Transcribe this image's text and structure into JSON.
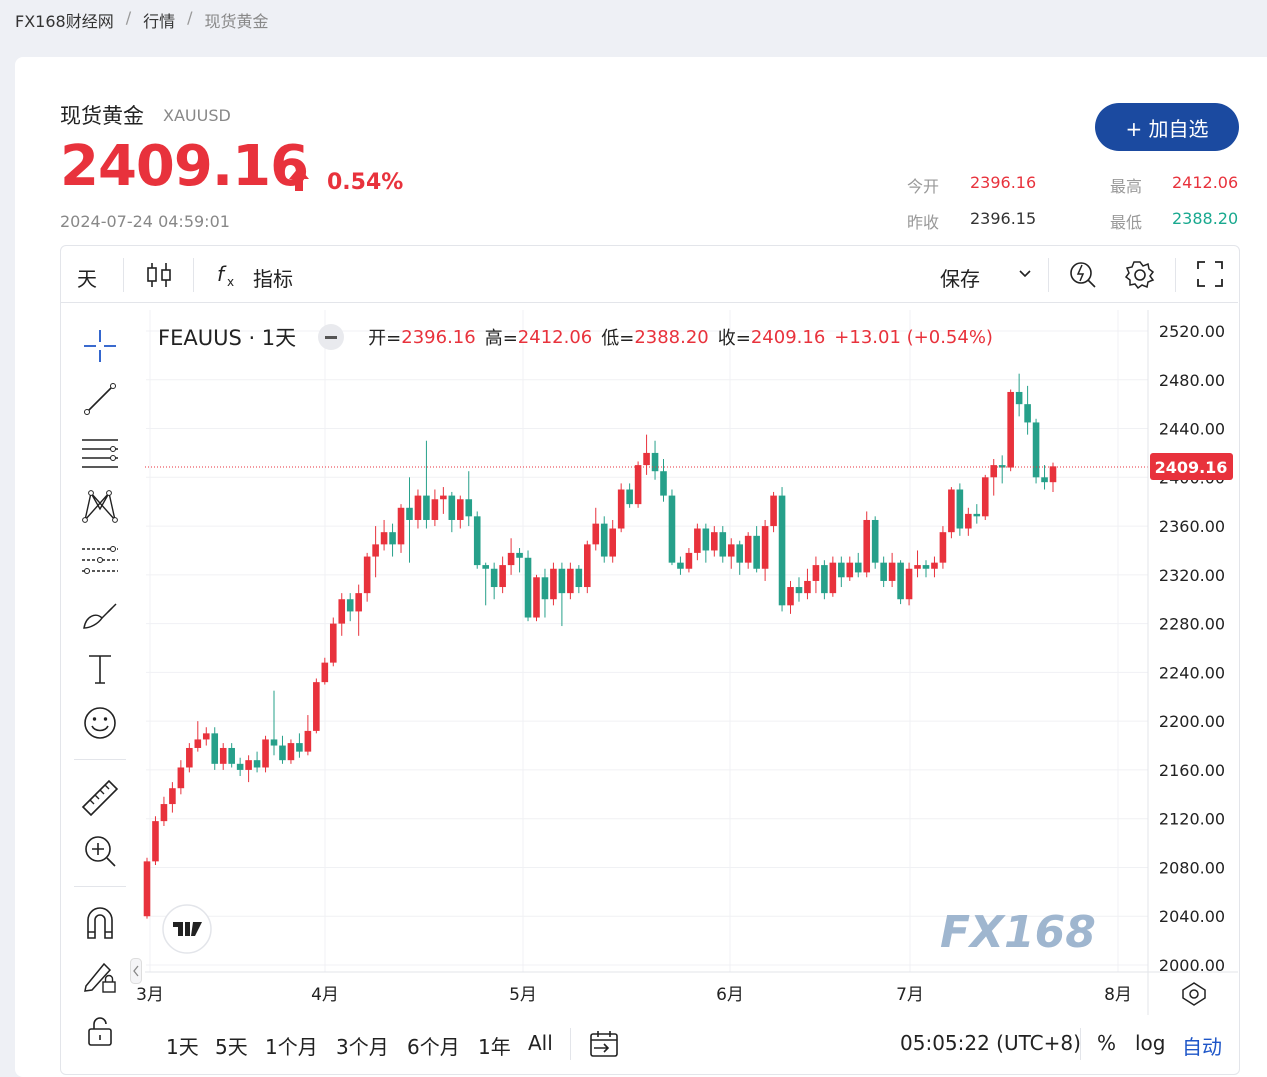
{
  "breadcrumb": {
    "site": "FX168财经网",
    "section": "行情",
    "current": "现货黄金"
  },
  "quote": {
    "name": "现货黄金",
    "symbol": "XAUUSD",
    "price": "2409.16",
    "change_pct": "0.54%",
    "timestamp": "2024-07-24 04:59:01",
    "add_label": "+ 加自选"
  },
  "stats": {
    "open_label": "今开",
    "open": "2396.16",
    "high_label": "最高",
    "high": "2412.06",
    "prev_label": "昨收",
    "prev": "2396.15",
    "low_label": "最低",
    "low": "2388.20"
  },
  "toolbar": {
    "interval": "天",
    "indicators_label": "指标",
    "save_label": "保存"
  },
  "legend": {
    "symbol": "FEAUUS · 1天",
    "open_label": "开=",
    "open": "2396.16",
    "high_label": "高=",
    "high": "2412.06",
    "low_label": "低=",
    "low": "2388.20",
    "close_label": "收=",
    "close": "2409.16",
    "change": "+13.01 (+0.54%)"
  },
  "price_tag": "2409.16",
  "watermark": "FX168",
  "bottom": {
    "ranges": [
      "1天",
      "5天",
      "1个月",
      "3个月",
      "6个月",
      "1年",
      "All"
    ],
    "time": "05:05:22 (UTC+8)",
    "pct": "%",
    "log": "log",
    "auto": "自动"
  },
  "colors": {
    "up": "#e8323c",
    "down": "#26a08a",
    "accent": "#1b4aa0"
  },
  "chart_data": {
    "type": "candlestick",
    "ylim": [
      2000,
      2520
    ],
    "y_ticks": [
      "2520.00",
      "2480.00",
      "2440.00",
      "2400.00",
      "2360.00",
      "2320.00",
      "2280.00",
      "2240.00",
      "2200.00",
      "2160.00",
      "2120.00",
      "2080.00",
      "2040.00",
      "2000.00"
    ],
    "x_labels": [
      "3月",
      "4月",
      "5月",
      "6月",
      "7月",
      "8月"
    ],
    "candles": [
      [
        2040,
        2085,
        2038,
        2088
      ],
      [
        2085,
        2118,
        2082,
        2122
      ],
      [
        2118,
        2132,
        2114,
        2138
      ],
      [
        2132,
        2145,
        2125,
        2150
      ],
      [
        2145,
        2162,
        2140,
        2168
      ],
      [
        2162,
        2178,
        2158,
        2182
      ],
      [
        2178,
        2185,
        2175,
        2200
      ],
      [
        2185,
        2190,
        2180,
        2195
      ],
      [
        2190,
        2165,
        2160,
        2195
      ],
      [
        2165,
        2178,
        2160,
        2182
      ],
      [
        2178,
        2165,
        2162,
        2182
      ],
      [
        2165,
        2160,
        2155,
        2170
      ],
      [
        2160,
        2168,
        2150,
        2172
      ],
      [
        2168,
        2162,
        2158,
        2175
      ],
      [
        2162,
        2185,
        2158,
        2188
      ],
      [
        2185,
        2180,
        2172,
        2225
      ],
      [
        2180,
        2168,
        2165,
        2188
      ],
      [
        2168,
        2182,
        2165,
        2185
      ],
      [
        2182,
        2175,
        2170,
        2190
      ],
      [
        2175,
        2192,
        2172,
        2205
      ],
      [
        2192,
        2232,
        2190,
        2235
      ],
      [
        2232,
        2248,
        2230,
        2252
      ],
      [
        2248,
        2280,
        2245,
        2285
      ],
      [
        2280,
        2300,
        2270,
        2305
      ],
      [
        2300,
        2290,
        2282,
        2305
      ],
      [
        2290,
        2305,
        2270,
        2312
      ],
      [
        2305,
        2335,
        2298,
        2338
      ],
      [
        2335,
        2345,
        2318,
        2360
      ],
      [
        2345,
        2355,
        2340,
        2365
      ],
      [
        2355,
        2345,
        2335,
        2362
      ],
      [
        2345,
        2375,
        2338,
        2378
      ],
      [
        2375,
        2365,
        2330,
        2400
      ],
      [
        2365,
        2385,
        2358,
        2390
      ],
      [
        2385,
        2365,
        2358,
        2430
      ],
      [
        2365,
        2382,
        2360,
        2390
      ],
      [
        2382,
        2385,
        2370,
        2392
      ],
      [
        2385,
        2365,
        2355,
        2388
      ],
      [
        2365,
        2382,
        2358,
        2385
      ],
      [
        2382,
        2368,
        2360,
        2405
      ],
      [
        2368,
        2328,
        2325,
        2372
      ],
      [
        2328,
        2325,
        2295,
        2330
      ],
      [
        2325,
        2310,
        2300,
        2330
      ],
      [
        2310,
        2328,
        2305,
        2335
      ],
      [
        2328,
        2338,
        2320,
        2350
      ],
      [
        2338,
        2334,
        2322,
        2342
      ],
      [
        2334,
        2285,
        2282,
        2340
      ],
      [
        2285,
        2318,
        2282,
        2320
      ],
      [
        2318,
        2300,
        2285,
        2325
      ],
      [
        2300,
        2325,
        2295,
        2330
      ],
      [
        2325,
        2305,
        2278,
        2330
      ],
      [
        2305,
        2325,
        2300,
        2330
      ],
      [
        2325,
        2310,
        2305,
        2328
      ],
      [
        2310,
        2345,
        2305,
        2348
      ],
      [
        2345,
        2362,
        2340,
        2375
      ],
      [
        2362,
        2335,
        2330,
        2368
      ],
      [
        2335,
        2358,
        2330,
        2365
      ],
      [
        2358,
        2390,
        2355,
        2395
      ],
      [
        2390,
        2378,
        2375,
        2395
      ],
      [
        2378,
        2410,
        2375,
        2413
      ],
      [
        2410,
        2420,
        2402,
        2435
      ],
      [
        2420,
        2405,
        2398,
        2430
      ],
      [
        2405,
        2385,
        2380,
        2415
      ],
      [
        2385,
        2330,
        2328,
        2390
      ],
      [
        2330,
        2325,
        2320,
        2335
      ],
      [
        2325,
        2338,
        2322,
        2342
      ],
      [
        2338,
        2358,
        2332,
        2362
      ],
      [
        2358,
        2340,
        2330,
        2362
      ],
      [
        2340,
        2355,
        2335,
        2360
      ],
      [
        2355,
        2335,
        2330,
        2360
      ],
      [
        2335,
        2345,
        2325,
        2350
      ],
      [
        2345,
        2330,
        2320,
        2348
      ],
      [
        2330,
        2352,
        2325,
        2355
      ],
      [
        2352,
        2325,
        2322,
        2360
      ],
      [
        2325,
        2360,
        2315,
        2365
      ],
      [
        2360,
        2385,
        2355,
        2388
      ],
      [
        2385,
        2295,
        2290,
        2392
      ],
      [
        2295,
        2310,
        2288,
        2315
      ],
      [
        2310,
        2305,
        2298,
        2318
      ],
      [
        2305,
        2315,
        2300,
        2325
      ],
      [
        2315,
        2328,
        2305,
        2335
      ],
      [
        2328,
        2305,
        2300,
        2332
      ],
      [
        2305,
        2330,
        2302,
        2335
      ],
      [
        2330,
        2318,
        2310,
        2335
      ],
      [
        2318,
        2330,
        2315,
        2335
      ],
      [
        2330,
        2322,
        2318,
        2338
      ],
      [
        2322,
        2365,
        2318,
        2372
      ],
      [
        2365,
        2330,
        2325,
        2368
      ],
      [
        2330,
        2315,
        2310,
        2335
      ],
      [
        2315,
        2330,
        2310,
        2338
      ],
      [
        2330,
        2300,
        2296,
        2332
      ],
      [
        2300,
        2325,
        2295,
        2330
      ],
      [
        2325,
        2328,
        2318,
        2340
      ],
      [
        2328,
        2325,
        2318,
        2332
      ],
      [
        2325,
        2330,
        2318,
        2335
      ],
      [
        2330,
        2355,
        2325,
        2360
      ],
      [
        2355,
        2390,
        2350,
        2392
      ],
      [
        2390,
        2358,
        2352,
        2395
      ],
      [
        2358,
        2370,
        2352,
        2375
      ],
      [
        2370,
        2368,
        2362,
        2378
      ],
      [
        2368,
        2400,
        2365,
        2402
      ],
      [
        2400,
        2410,
        2385,
        2415
      ],
      [
        2410,
        2408,
        2395,
        2418
      ],
      [
        2408,
        2470,
        2405,
        2472
      ],
      [
        2470,
        2460,
        2450,
        2485
      ],
      [
        2460,
        2445,
        2435,
        2475
      ],
      [
        2445,
        2400,
        2395,
        2448
      ],
      [
        2400,
        2396,
        2390,
        2410
      ],
      [
        2396,
        2409,
        2388,
        2412
      ]
    ]
  }
}
